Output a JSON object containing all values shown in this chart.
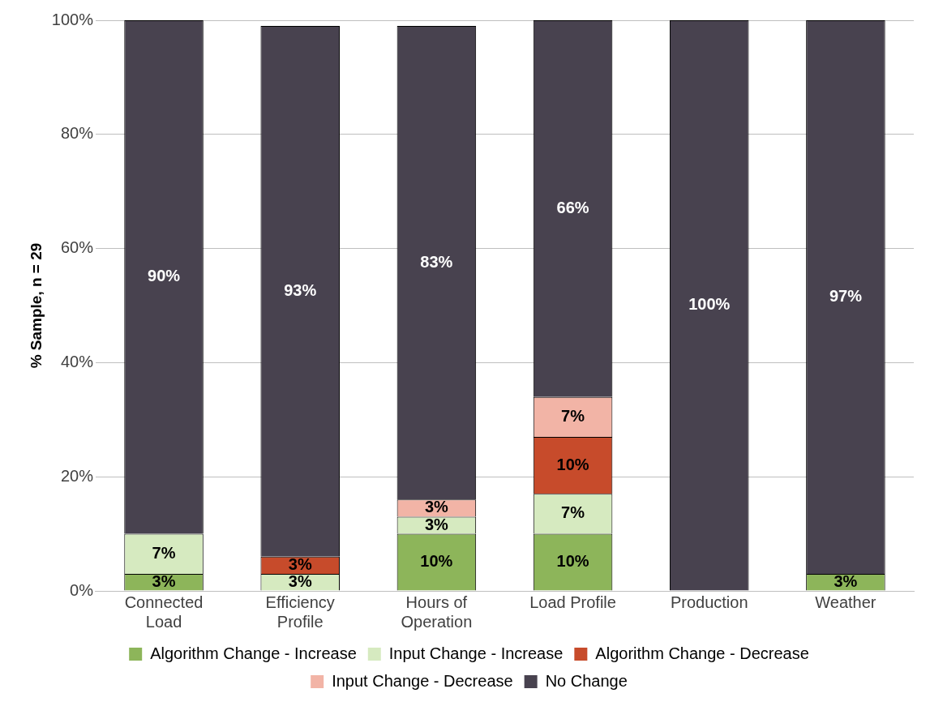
{
  "chart_data": {
    "type": "bar",
    "stacked": true,
    "ylabel": "% Sample, n = 29",
    "categories": [
      "Connected Load",
      "Efficiency Profile",
      "Hours of Operation",
      "Load Profile",
      "Production",
      "Weather"
    ],
    "series": [
      {
        "name": "Algorithm Change - Increase",
        "color": "#8db55a",
        "values": [
          3,
          null,
          10,
          10,
          null,
          3
        ],
        "value_labels": [
          "3%",
          null,
          "10%",
          "10%",
          null,
          "3%"
        ]
      },
      {
        "name": "Input Change - Increase",
        "color": "#d6eac0",
        "values": [
          7,
          3,
          3,
          7,
          null,
          null
        ],
        "value_labels": [
          "7%",
          "3%",
          "3%",
          "7%",
          null,
          null
        ]
      },
      {
        "name": "Algorithm Change - Decrease",
        "color": "#c74b2b",
        "values": [
          null,
          3,
          null,
          10,
          null,
          null
        ],
        "value_labels": [
          null,
          "3%",
          null,
          "10%",
          null,
          null
        ]
      },
      {
        "name": "Input Change - Decrease",
        "color": "#f2b4a6",
        "values": [
          null,
          null,
          3,
          7,
          null,
          null
        ],
        "value_labels": [
          null,
          null,
          "3%",
          "7%",
          null,
          null
        ]
      },
      {
        "name": "No Change",
        "color": "#48424f",
        "values": [
          90,
          93,
          83,
          66,
          100,
          97
        ],
        "value_labels": [
          "90%",
          "93%",
          "83%",
          "66%",
          "100%",
          "97%"
        ]
      }
    ],
    "ylim": [
      0,
      100
    ],
    "yticks": [
      {
        "value": 0,
        "label": "0%"
      },
      {
        "value": 20,
        "label": "20%"
      },
      {
        "value": 40,
        "label": "40%"
      },
      {
        "value": 60,
        "label": "60%"
      },
      {
        "value": 80,
        "label": "80%"
      },
      {
        "value": 100,
        "label": "100%"
      }
    ],
    "grid": "y",
    "legend": "bottom"
  }
}
